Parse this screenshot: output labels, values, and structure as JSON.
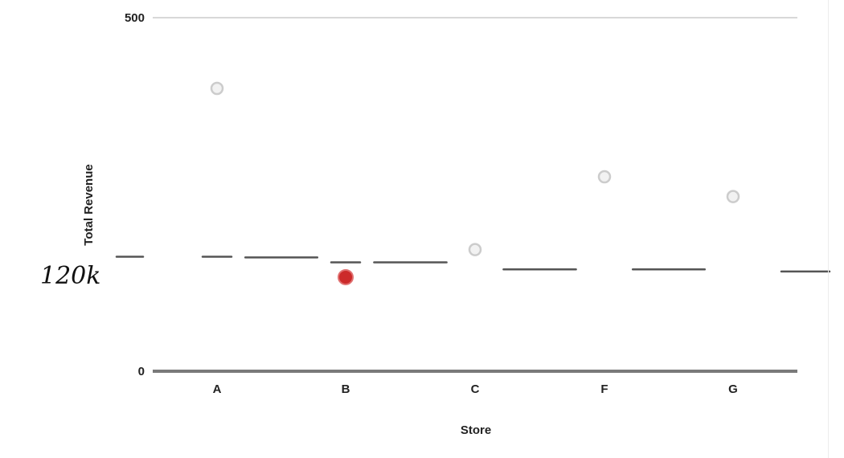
{
  "chart_data": {
    "type": "scatter",
    "title": "",
    "xlabel": "Store",
    "ylabel": "Total Revenue",
    "ylim": [
      0,
      500
    ],
    "yticks": [
      0,
      500
    ],
    "categories": [
      "A",
      "B",
      "C",
      "F",
      "G"
    ],
    "grid": "horizontal line at the top tick",
    "points": [
      {
        "x": "A",
        "y": 400,
        "color": "#cccccc",
        "mark": "ring"
      },
      {
        "x": "B",
        "y": 133,
        "color": "#cc2a2a",
        "mark": "filled"
      },
      {
        "x": "C",
        "y": 172,
        "color": "#cccccc",
        "mark": "ring"
      },
      {
        "x": "F",
        "y": 275,
        "color": "#cccccc",
        "mark": "ring"
      },
      {
        "x": "G",
        "y": 247,
        "color": "#cccccc",
        "mark": "ring"
      }
    ],
    "reference_segments": [
      {
        "from": "A",
        "to": "A",
        "y": 162
      },
      {
        "from": "A",
        "to": "B",
        "y": 161
      },
      {
        "from": "B",
        "to": "C",
        "y": 154
      },
      {
        "from": "C",
        "to": "F",
        "y": 144
      },
      {
        "from": "F",
        "to": "G",
        "y": 144
      },
      {
        "from": "G",
        "to": "G",
        "y": 141
      }
    ],
    "annotation": {
      "text": "120k",
      "style": "handwritten"
    }
  }
}
